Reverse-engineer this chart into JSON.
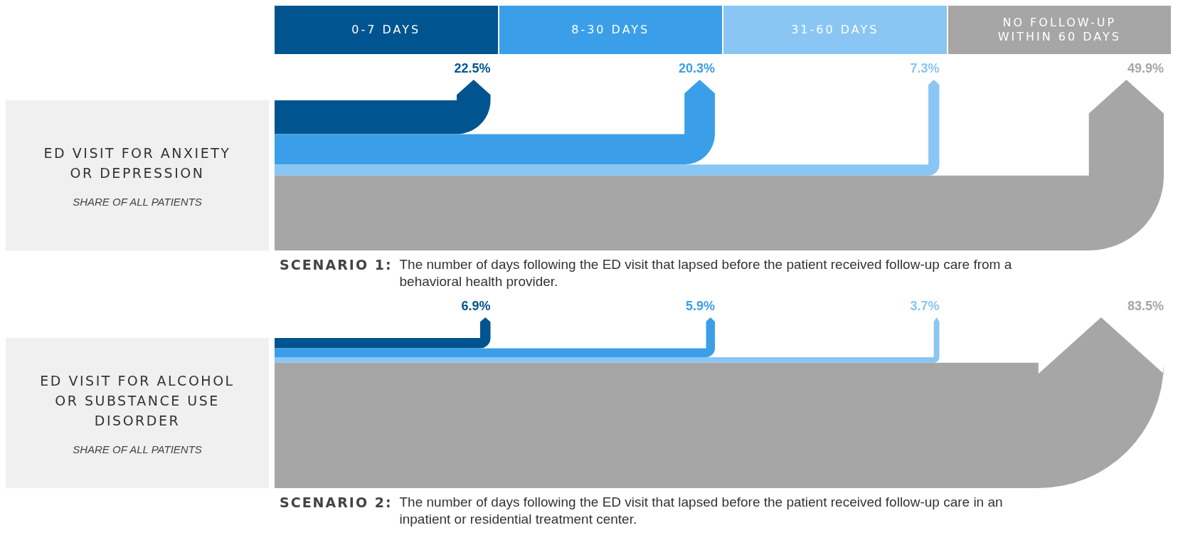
{
  "chart_data": [
    {
      "type": "other",
      "title": "ED VISIT FOR ANXIETY OR DEPRESSION",
      "subtitle": "SHARE OF ALL PATIENTS",
      "categories": [
        "0-7 DAYS",
        "8-30 DAYS",
        "31-60 DAYS",
        "NO FOLLOW-UP WITHIN 60 DAYS"
      ],
      "values": [
        22.5,
        20.3,
        7.3,
        49.9
      ],
      "value_labels": [
        "22.5%",
        "20.3%",
        "7.3%",
        "49.9%"
      ],
      "colors": [
        "#00548f",
        "#3a9fe8",
        "#89c6f3",
        "#a6a6a6"
      ],
      "annotations": [
        "SCENARIO 1: The number of days following the ED visit that lapsed before the patient received follow-up care from a behavioral health provider."
      ]
    },
    {
      "type": "other",
      "title": "ED VISIT FOR ALCOHOL OR SUBSTANCE USE DISORDER",
      "subtitle": "SHARE OF ALL PATIENTS",
      "values": [
        6.9,
        5.9,
        3.7,
        83.5
      ],
      "value_labels": [
        "6.9%",
        "5.9%",
        "3.7%",
        "83.5%"
      ],
      "colors": [
        "#00548f",
        "#3a9fe8",
        "#89c6f3",
        "#a6a6a6"
      ],
      "annotations": [
        "SCENARIO 2: The number of days following the ED visit that lapsed before the patient received follow-up care in an inpatient or residential treatment center."
      ]
    }
  ]
}
